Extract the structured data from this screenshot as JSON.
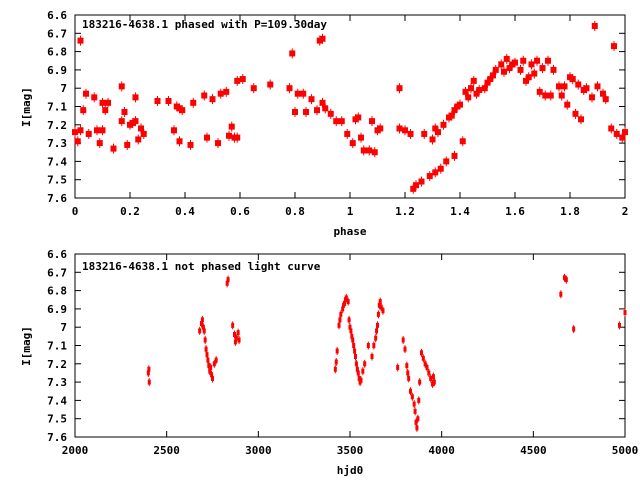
{
  "accent_color": "#ff0000",
  "chart_data": [
    {
      "type": "scatter",
      "title": "183216-4638.1 phased with P=109.30day",
      "xlabel": "phase",
      "ylabel": "I[mag]",
      "xlim": [
        0,
        2
      ],
      "ylim": [
        7.6,
        6.6
      ],
      "y_inverted": true,
      "xticks": [
        "0",
        "0.2",
        "0.4",
        "0.6",
        "0.8",
        "1",
        "1.2",
        "1.4",
        "1.6",
        "1.8",
        "2"
      ],
      "xtick_values": [
        0,
        0.2,
        0.4,
        0.6,
        0.8,
        1,
        1.2,
        1.4,
        1.6,
        1.8,
        2
      ],
      "yticks": [
        "6.6",
        "6.7",
        "6.8",
        "6.9",
        "7",
        "7.1",
        "7.2",
        "7.3",
        "7.4",
        "7.5",
        "7.6"
      ],
      "ytick_values": [
        6.6,
        6.7,
        6.8,
        6.9,
        7.0,
        7.1,
        7.2,
        7.3,
        7.4,
        7.5,
        7.6
      ],
      "points": [
        [
          0.0,
          7.24
        ],
        [
          0.01,
          7.29
        ],
        [
          0.02,
          6.74
        ],
        [
          0.02,
          7.23
        ],
        [
          0.03,
          7.12
        ],
        [
          0.04,
          7.03
        ],
        [
          0.05,
          7.25
        ],
        [
          0.07,
          7.05
        ],
        [
          0.08,
          7.23
        ],
        [
          0.09,
          7.3
        ],
        [
          0.1,
          7.23
        ],
        [
          0.1,
          7.08
        ],
        [
          0.11,
          7.12
        ],
        [
          0.12,
          7.08
        ],
        [
          0.14,
          7.33
        ],
        [
          0.17,
          7.18
        ],
        [
          0.17,
          6.99
        ],
        [
          0.18,
          7.13
        ],
        [
          0.19,
          7.31
        ],
        [
          0.2,
          7.2
        ],
        [
          0.21,
          7.19
        ],
        [
          0.22,
          7.18
        ],
        [
          0.22,
          7.05
        ],
        [
          0.23,
          7.28
        ],
        [
          0.24,
          7.22
        ],
        [
          0.25,
          7.25
        ],
        [
          0.3,
          7.07
        ],
        [
          0.34,
          7.07
        ],
        [
          0.36,
          7.23
        ],
        [
          0.37,
          7.1
        ],
        [
          0.38,
          7.29
        ],
        [
          0.38,
          7.11
        ],
        [
          0.39,
          7.12
        ],
        [
          0.42,
          7.31
        ],
        [
          0.43,
          7.08
        ],
        [
          0.47,
          7.04
        ],
        [
          0.48,
          7.27
        ],
        [
          0.5,
          7.06
        ],
        [
          0.52,
          7.3
        ],
        [
          0.53,
          7.03
        ],
        [
          0.55,
          7.02
        ],
        [
          0.56,
          7.26
        ],
        [
          0.57,
          7.21
        ],
        [
          0.58,
          7.27
        ],
        [
          0.59,
          7.27
        ],
        [
          0.59,
          6.96
        ],
        [
          0.61,
          6.95
        ],
        [
          0.65,
          7.0
        ],
        [
          0.71,
          6.98
        ],
        [
          0.78,
          7.0
        ],
        [
          0.79,
          6.81
        ],
        [
          0.8,
          7.13
        ],
        [
          0.81,
          7.03
        ],
        [
          0.83,
          7.03
        ],
        [
          0.84,
          7.13
        ],
        [
          0.86,
          7.06
        ],
        [
          0.88,
          7.12
        ],
        [
          0.89,
          6.74
        ],
        [
          0.9,
          6.73
        ],
        [
          0.9,
          7.08
        ],
        [
          0.91,
          7.11
        ],
        [
          0.93,
          7.14
        ],
        [
          0.95,
          7.18
        ],
        [
          0.97,
          7.18
        ],
        [
          0.99,
          7.25
        ],
        [
          1.01,
          7.3
        ],
        [
          1.02,
          7.17
        ],
        [
          1.03,
          7.16
        ],
        [
          1.04,
          7.27
        ],
        [
          1.05,
          7.34
        ],
        [
          1.07,
          7.34
        ],
        [
          1.08,
          7.18
        ],
        [
          1.09,
          7.35
        ],
        [
          1.1,
          7.23
        ],
        [
          1.11,
          7.22
        ],
        [
          1.18,
          7.0
        ],
        [
          1.18,
          7.22
        ],
        [
          1.2,
          7.23
        ],
        [
          1.22,
          7.25
        ],
        [
          1.23,
          7.55
        ],
        [
          1.24,
          7.53
        ],
        [
          1.26,
          7.51
        ],
        [
          1.27,
          7.25
        ],
        [
          1.29,
          7.48
        ],
        [
          1.3,
          7.28
        ],
        [
          1.31,
          7.46
        ],
        [
          1.31,
          7.22
        ],
        [
          1.32,
          7.24
        ],
        [
          1.33,
          7.44
        ],
        [
          1.34,
          7.2
        ],
        [
          1.35,
          7.4
        ],
        [
          1.36,
          7.16
        ],
        [
          1.37,
          7.15
        ],
        [
          1.38,
          7.37
        ],
        [
          1.38,
          7.12
        ],
        [
          1.39,
          7.1
        ],
        [
          1.4,
          7.09
        ],
        [
          1.41,
          7.29
        ],
        [
          1.42,
          7.02
        ],
        [
          1.43,
          7.05
        ],
        [
          1.44,
          7.0
        ],
        [
          1.45,
          6.96
        ],
        [
          1.46,
          7.03
        ],
        [
          1.47,
          7.01
        ],
        [
          1.49,
          7.0
        ],
        [
          1.5,
          6.97
        ],
        [
          1.51,
          6.95
        ],
        [
          1.52,
          6.93
        ],
        [
          1.53,
          6.9
        ],
        [
          1.55,
          6.87
        ],
        [
          1.56,
          6.91
        ],
        [
          1.57,
          6.84
        ],
        [
          1.58,
          6.89
        ],
        [
          1.59,
          6.87
        ],
        [
          1.6,
          6.86
        ],
        [
          1.62,
          6.9
        ],
        [
          1.63,
          6.85
        ],
        [
          1.64,
          6.96
        ],
        [
          1.65,
          6.94
        ],
        [
          1.66,
          6.87
        ],
        [
          1.67,
          6.92
        ],
        [
          1.68,
          6.85
        ],
        [
          1.69,
          7.02
        ],
        [
          1.7,
          6.89
        ],
        [
          1.71,
          7.04
        ],
        [
          1.72,
          6.85
        ],
        [
          1.73,
          7.04
        ],
        [
          1.74,
          6.9
        ],
        [
          1.76,
          6.99
        ],
        [
          1.77,
          7.04
        ],
        [
          1.78,
          6.99
        ],
        [
          1.79,
          7.09
        ],
        [
          1.8,
          6.94
        ],
        [
          1.81,
          6.95
        ],
        [
          1.82,
          7.14
        ],
        [
          1.83,
          6.98
        ],
        [
          1.84,
          7.17
        ],
        [
          1.85,
          7.01
        ],
        [
          1.86,
          7.0
        ],
        [
          1.88,
          7.05
        ],
        [
          1.89,
          6.66
        ],
        [
          1.9,
          6.99
        ],
        [
          1.92,
          7.03
        ],
        [
          1.93,
          7.06
        ],
        [
          1.95,
          7.22
        ],
        [
          1.96,
          6.77
        ],
        [
          1.97,
          7.25
        ],
        [
          1.99,
          7.27
        ],
        [
          2.0,
          7.24
        ]
      ]
    },
    {
      "type": "scatter",
      "title": "183216-4638.1 not phased light curve",
      "xlabel": "hjd0",
      "ylabel": "I[mag]",
      "xlim": [
        2000,
        5000
      ],
      "ylim": [
        7.6,
        6.6
      ],
      "y_inverted": true,
      "xticks": [
        "2000",
        "2500",
        "3000",
        "3500",
        "4000",
        "4500",
        "5000"
      ],
      "xtick_values": [
        2000,
        2500,
        3000,
        3500,
        4000,
        4500,
        5000
      ],
      "yticks": [
        "6.6",
        "6.7",
        "6.8",
        "6.9",
        "7",
        "7.1",
        "7.2",
        "7.3",
        "7.4",
        "7.5",
        "7.6"
      ],
      "ytick_values": [
        6.6,
        6.7,
        6.8,
        6.9,
        7.0,
        7.1,
        7.2,
        7.3,
        7.4,
        7.5,
        7.6
      ],
      "points": [
        [
          2400,
          7.25
        ],
        [
          2403,
          7.23
        ],
        [
          2405,
          7.3
        ],
        [
          2680,
          7.02
        ],
        [
          2690,
          6.98
        ],
        [
          2695,
          6.96
        ],
        [
          2700,
          7.0
        ],
        [
          2705,
          7.02
        ],
        [
          2710,
          7.07
        ],
        [
          2715,
          7.12
        ],
        [
          2720,
          7.15
        ],
        [
          2725,
          7.18
        ],
        [
          2730,
          7.21
        ],
        [
          2735,
          7.24
        ],
        [
          2740,
          7.22
        ],
        [
          2745,
          7.26
        ],
        [
          2750,
          7.28
        ],
        [
          2760,
          7.2
        ],
        [
          2770,
          7.18
        ],
        [
          2830,
          6.76
        ],
        [
          2835,
          6.74
        ],
        [
          2860,
          6.99
        ],
        [
          2870,
          7.04
        ],
        [
          2875,
          7.08
        ],
        [
          2880,
          7.06
        ],
        [
          2890,
          7.03
        ],
        [
          2895,
          7.07
        ],
        [
          3420,
          7.23
        ],
        [
          3425,
          7.19
        ],
        [
          3430,
          7.13
        ],
        [
          3440,
          6.99
        ],
        [
          3445,
          6.96
        ],
        [
          3450,
          6.93
        ],
        [
          3460,
          6.9
        ],
        [
          3465,
          6.88
        ],
        [
          3470,
          6.87
        ],
        [
          3475,
          6.85
        ],
        [
          3480,
          6.84
        ],
        [
          3490,
          6.86
        ],
        [
          3495,
          6.96
        ],
        [
          3500,
          7.0
        ],
        [
          3505,
          7.02
        ],
        [
          3510,
          7.05
        ],
        [
          3515,
          7.07
        ],
        [
          3520,
          7.1
        ],
        [
          3525,
          7.13
        ],
        [
          3530,
          7.16
        ],
        [
          3535,
          7.2
        ],
        [
          3540,
          7.23
        ],
        [
          3545,
          7.25
        ],
        [
          3550,
          7.28
        ],
        [
          3555,
          7.3
        ],
        [
          3560,
          7.29
        ],
        [
          3570,
          7.24
        ],
        [
          3580,
          7.2
        ],
        [
          3600,
          7.1
        ],
        [
          3620,
          7.16
        ],
        [
          3630,
          7.1
        ],
        [
          3640,
          7.06
        ],
        [
          3645,
          7.02
        ],
        [
          3650,
          6.99
        ],
        [
          3655,
          6.93
        ],
        [
          3660,
          6.88
        ],
        [
          3665,
          6.86
        ],
        [
          3670,
          6.89
        ],
        [
          3680,
          6.91
        ],
        [
          3760,
          7.22
        ],
        [
          3790,
          7.07
        ],
        [
          3800,
          7.12
        ],
        [
          3810,
          7.21
        ],
        [
          3815,
          7.25
        ],
        [
          3820,
          7.28
        ],
        [
          3830,
          7.35
        ],
        [
          3840,
          7.38
        ],
        [
          3850,
          7.42
        ],
        [
          3855,
          7.46
        ],
        [
          3860,
          7.52
        ],
        [
          3865,
          7.55
        ],
        [
          3870,
          7.5
        ],
        [
          3875,
          7.4
        ],
        [
          3880,
          7.3
        ],
        [
          3890,
          7.14
        ],
        [
          3900,
          7.17
        ],
        [
          3910,
          7.2
        ],
        [
          3920,
          7.22
        ],
        [
          3930,
          7.25
        ],
        [
          3940,
          7.28
        ],
        [
          3950,
          7.31
        ],
        [
          3955,
          7.27
        ],
        [
          3960,
          7.3
        ],
        [
          4650,
          6.82
        ],
        [
          4670,
          6.73
        ],
        [
          4680,
          6.74
        ],
        [
          4720,
          7.01
        ],
        [
          4970,
          6.99
        ],
        [
          5000,
          6.92
        ]
      ]
    }
  ]
}
